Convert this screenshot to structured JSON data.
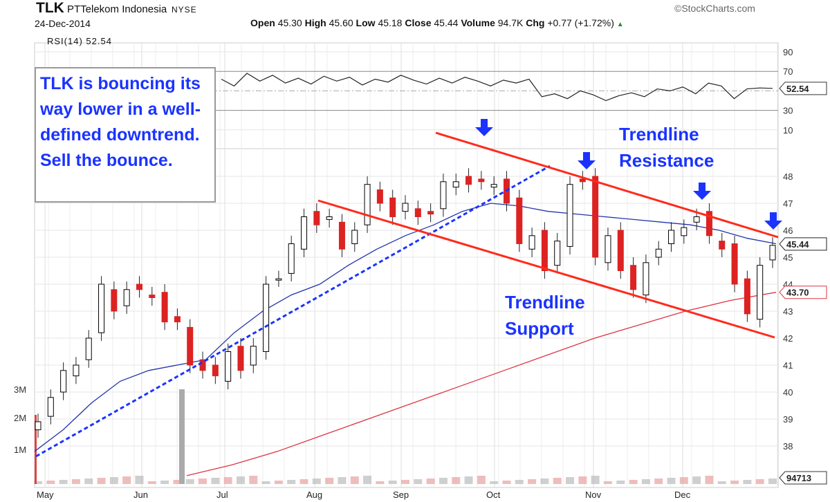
{
  "header": {
    "symbol": "TLK",
    "company": "PTTelekom Indonesia",
    "exchange": "NYSE",
    "date": "24-Dec-2014",
    "brand": "©StockCharts.com",
    "open_label": "Open",
    "open": "45.30",
    "high_label": "High",
    "high": "45.60",
    "low_label": "Low",
    "low": "45.18",
    "close_label": "Close",
    "close": "45.44",
    "volume_label": "Volume",
    "volume": "94.7K",
    "chg_label": "Chg",
    "chg": "+0.77 (+1.72%)",
    "chg_arrow": "▲"
  },
  "rsi_label": "RSI(14) 52.54",
  "annotations": {
    "note": "TLK is bouncing its way lower in a well-defined downtrend. Sell the bounce.",
    "resistance": "Trendline Resistance",
    "support": "Trendline Support"
  },
  "colors": {
    "up": "#000000",
    "down": "#dd2222",
    "ma50": "#2233aa",
    "ma200": "#dd3344",
    "trend": "#ff2a1a",
    "blue": "#1a33ff"
  },
  "chart_data": {
    "type": "candlestick",
    "title": "TLK PTTelekom Indonesia NYSE",
    "x_ticks": [
      "May",
      "Jun",
      "Jul",
      "Aug",
      "Sep",
      "Oct",
      "Nov",
      "Dec"
    ],
    "price_ticks": [
      48,
      47,
      46,
      45,
      44,
      43,
      42,
      41,
      40,
      39,
      38
    ],
    "price_ylim": [
      37.5,
      49
    ],
    "rsi_ticks": [
      90,
      70,
      30,
      10
    ],
    "volume_ticks": [
      "3M",
      "2M",
      "1M"
    ],
    "closes": [
      38.9,
      39.8,
      40.8,
      41.0,
      42.0,
      44.0,
      43.0,
      43.8,
      43.8,
      43.5,
      42.6,
      42.6,
      41.0,
      40.8,
      40.6,
      41.5,
      40.8,
      41.7,
      44.0,
      44.2,
      45.5,
      46.5,
      46.2,
      46.5,
      45.3,
      46.0,
      47.7,
      47.0,
      46.5,
      47.0,
      46.5,
      46.6,
      47.8,
      47.8,
      47.7,
      47.8,
      47.7,
      47.0,
      45.5,
      45.8,
      44.5,
      45.6,
      47.7,
      47.8,
      45.0,
      45.8,
      44.5,
      43.8,
      44.8,
      45.3,
      46.0,
      46.1,
      46.5,
      45.8,
      45.3,
      44.0,
      42.9,
      44.7,
      45.44
    ],
    "ma50": [
      37.8,
      38.6,
      39.6,
      40.4,
      40.8,
      41.0,
      41.2,
      42.2,
      43.0,
      43.6,
      44.0,
      44.7,
      45.3,
      45.8,
      46.2,
      46.7,
      47.0,
      46.9,
      46.7,
      46.6,
      46.5,
      46.4,
      46.3,
      46.2,
      46.0,
      45.7,
      45.5
    ],
    "ma200": [
      36.9,
      37.3,
      37.8,
      38.4,
      39.0,
      39.6,
      40.2,
      40.8,
      41.4,
      42.0,
      42.5,
      43.0,
      43.4,
      43.7
    ],
    "rsi": [
      62,
      55,
      68,
      60,
      66,
      58,
      63,
      57,
      65,
      60,
      64,
      56,
      62,
      59,
      66,
      61,
      57,
      63,
      58,
      64,
      60,
      55,
      61,
      58,
      62,
      44,
      47,
      42,
      50,
      46,
      40,
      45,
      48,
      44,
      52,
      50,
      54,
      47,
      58,
      55,
      42,
      52,
      53,
      52.54
    ],
    "last_labels": {
      "close": "45.44",
      "ma200": "43.70",
      "rsi": "52.54",
      "volume": "94713"
    },
    "trendlines": {
      "resistance": "Trendline Resistance",
      "support": "Trendline Support"
    }
  }
}
